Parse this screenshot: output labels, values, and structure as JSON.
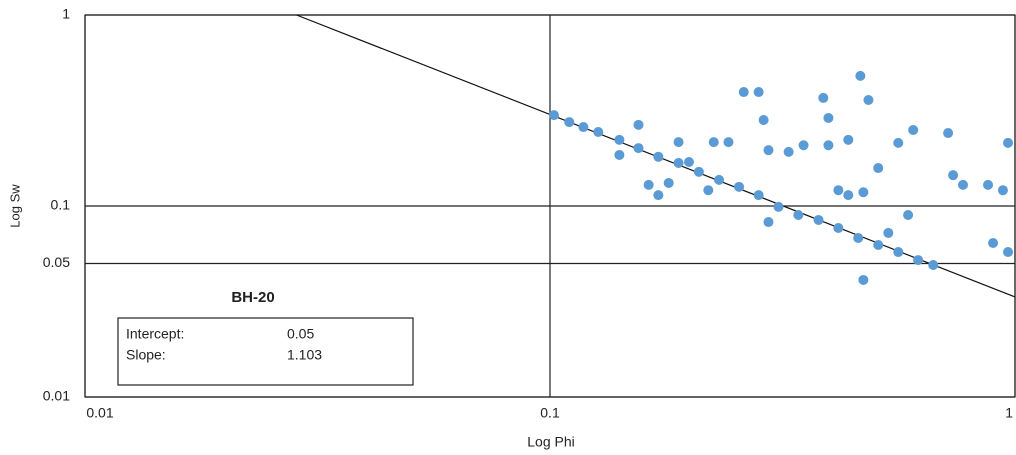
{
  "chart_data": {
    "type": "scatter",
    "xlabel": "Log Phi",
    "ylabel": "Log Sw",
    "log_x": true,
    "log_y": true,
    "grid": true,
    "xlim": [
      0.01,
      1
    ],
    "ylim": [
      0.01,
      1
    ],
    "xticks": [
      0.01,
      0.1,
      1
    ],
    "yticks": [
      0.01,
      0.05,
      0.1,
      1
    ],
    "series": [
      {
        "color": "#5b9bd5",
        "x": [
          0.102,
          0.11,
          0.118,
          0.127,
          0.141,
          0.155,
          0.171,
          0.189,
          0.209,
          0.231,
          0.255,
          0.281,
          0.31,
          0.342,
          0.378,
          0.417,
          0.46,
          0.508,
          0.561,
          0.619,
          0.667,
          0.155,
          0.171,
          0.18,
          0.189,
          0.199,
          0.225,
          0.242,
          0.261,
          0.281,
          0.288,
          0.295,
          0.326,
          0.351,
          0.387,
          0.397,
          0.397,
          0.417,
          0.438,
          0.465,
          0.484,
          0.472,
          0.508,
          0.561,
          0.604,
          0.589,
          0.718,
          0.736,
          0.773,
          0.875,
          0.942,
          0.966,
          0.897,
          0.966,
          0.472,
          0.534,
          0.295,
          0.219,
          0.163,
          0.141,
          0.438
        ],
        "values": [
          0.299,
          0.275,
          0.259,
          0.244,
          0.222,
          0.201,
          0.181,
          0.168,
          0.151,
          0.137,
          0.126,
          0.114,
          0.099,
          0.0897,
          0.0845,
          0.0767,
          0.068,
          0.0625,
          0.0574,
          0.0521,
          0.0491,
          0.266,
          0.114,
          0.132,
          0.216,
          0.17,
          0.216,
          0.216,
          0.395,
          0.395,
          0.282,
          0.196,
          0.192,
          0.208,
          0.368,
          0.289,
          0.208,
          0.121,
          0.222,
          0.48,
          0.359,
          0.118,
          0.158,
          0.214,
          0.25,
          0.0897,
          0.241,
          0.145,
          0.129,
          0.129,
          0.121,
          0.214,
          0.064,
          0.0574,
          0.041,
          0.0723,
          0.0824,
          0.121,
          0.129,
          0.185,
          0.114
        ]
      }
    ],
    "trendline": {
      "color": "#111111",
      "x": [
        0.0285,
        1
      ],
      "values": [
        1,
        0.0334
      ]
    },
    "annotation": {
      "title": "BH-20",
      "rows": [
        [
          "Intercept:",
          0.05
        ],
        [
          "Slope:",
          1.103
        ]
      ]
    }
  }
}
